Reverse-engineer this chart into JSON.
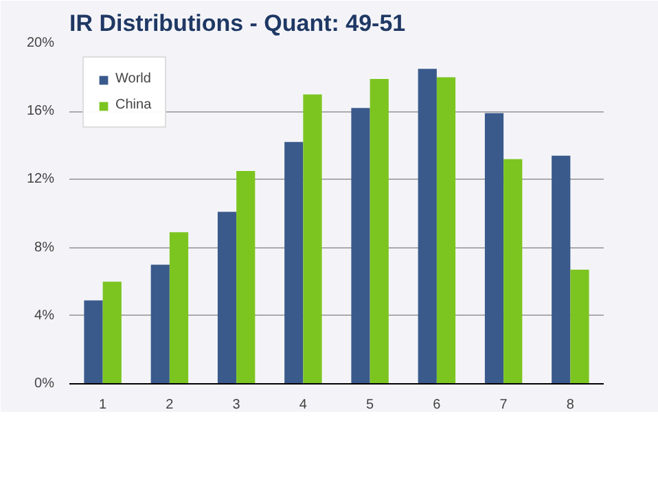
{
  "chart_data": {
    "type": "bar",
    "title": "IR Distributions -  Quant: 49-51",
    "categories": [
      "1",
      "2",
      "3",
      "4",
      "5",
      "6",
      "7",
      "8"
    ],
    "series": [
      {
        "name": "World",
        "color": "#3a5a8c",
        "values": [
          4.9,
          7.0,
          10.1,
          14.2,
          16.2,
          18.5,
          15.9,
          13.4
        ]
      },
      {
        "name": "China",
        "color": "#7cc520",
        "values": [
          6.0,
          8.9,
          12.5,
          17.0,
          17.9,
          18.0,
          13.2,
          6.7
        ]
      }
    ],
    "ylim": [
      0,
      20
    ],
    "yticks": [
      {
        "value": 0,
        "label": "0%"
      },
      {
        "value": 4,
        "label": "4%"
      },
      {
        "value": 8,
        "label": "8%"
      },
      {
        "value": 12,
        "label": "12%"
      },
      {
        "value": 16,
        "label": "16%"
      },
      {
        "value": 20,
        "label": "20%"
      }
    ],
    "grid": "y",
    "legend": "top left"
  }
}
